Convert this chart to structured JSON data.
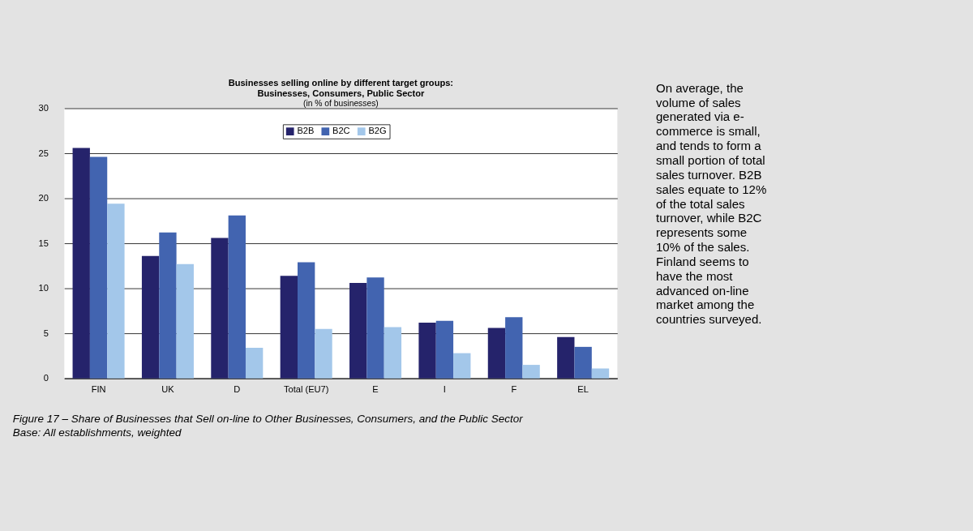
{
  "chart_data": {
    "type": "bar",
    "title": "Businesses selling online by different target groups:\nBusinesses, Consumers, Public Sector",
    "subtitle": "(in % of businesses)",
    "categories": [
      "FIN",
      "UK",
      "D",
      "Total (EU7)",
      "E",
      "I",
      "F",
      "EL"
    ],
    "series": [
      {
        "name": "B2B",
        "color": "#25236b",
        "values": [
          25.6,
          13.6,
          15.6,
          11.4,
          10.6,
          6.2,
          5.6,
          4.6
        ]
      },
      {
        "name": "B2C",
        "color": "#4264b0",
        "values": [
          24.6,
          16.2,
          18.1,
          12.9,
          11.2,
          6.4,
          6.8,
          3.5
        ]
      },
      {
        "name": "B2G",
        "color": "#a3c7ea",
        "values": [
          19.4,
          12.7,
          3.4,
          5.5,
          5.7,
          2.8,
          1.5,
          1.1
        ]
      }
    ],
    "ylim": [
      0,
      30
    ],
    "yticks": [
      0,
      5,
      10,
      15,
      20,
      25,
      30
    ],
    "grid": "y",
    "legend": "top",
    "annotations": [
      "On average, the\nvolume of sales\ngenerated via e-\ncommerce is small,\nand tends to form a\nsmall portion of total\nsales turnover. B2B\nsales equate to 12%\nof the total sales\nturnover, while B2C\nrepresents some\n10% of the sales.\nFinland seems to\nhave the most\nadvanced on-line\nmarket among the\ncountries surveyed.",
      "Figure 17 – Share of Businesses that Sell on-line to Other Businesses, Consumers, and the Public Sector",
      "Base: All establishments, weighted"
    ]
  }
}
